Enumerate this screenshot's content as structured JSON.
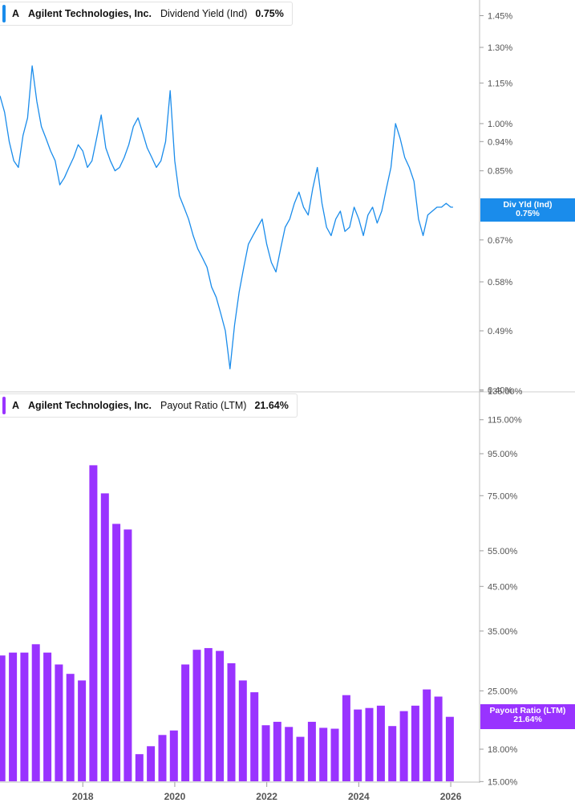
{
  "chart_data": [
    {
      "type": "line",
      "ticker": "A",
      "company": "Agilent Technologies, Inc.",
      "metric": "Dividend Yield (Ind)",
      "current_value": "0.75%",
      "tag_label": "Div Yld (Ind)",
      "color": "#1a8ceb",
      "y_scale": "log",
      "yticks": [
        "1.45%",
        "1.30%",
        "1.15%",
        "1.00%",
        "0.94%",
        "0.85%",
        "0.67%",
        "0.58%",
        "0.49%",
        "0.40%"
      ],
      "ytick_values": [
        1.45,
        1.3,
        1.15,
        1.0,
        0.94,
        0.85,
        0.67,
        0.58,
        0.49,
        0.4
      ],
      "ylim": [
        0.4,
        1.65
      ],
      "xlim": [
        2016.2,
        2026.4
      ],
      "x": [
        2016.2,
        2016.3,
        2016.4,
        2016.5,
        2016.6,
        2016.7,
        2016.8,
        2016.9,
        2017.0,
        2017.1,
        2017.2,
        2017.3,
        2017.4,
        2017.5,
        2017.6,
        2017.7,
        2017.8,
        2017.9,
        2018.0,
        2018.1,
        2018.2,
        2018.3,
        2018.4,
        2018.5,
        2018.6,
        2018.7,
        2018.8,
        2018.9,
        2019.0,
        2019.1,
        2019.2,
        2019.3,
        2019.4,
        2019.5,
        2019.6,
        2019.7,
        2019.8,
        2019.9,
        2020.0,
        2020.1,
        2020.2,
        2020.3,
        2020.4,
        2020.5,
        2020.6,
        2020.7,
        2020.8,
        2020.9,
        2021.0,
        2021.1,
        2021.2,
        2021.3,
        2021.4,
        2021.5,
        2021.6,
        2021.7,
        2021.8,
        2021.9,
        2022.0,
        2022.1,
        2022.2,
        2022.3,
        2022.4,
        2022.5,
        2022.6,
        2022.7,
        2022.8,
        2022.9,
        2023.0,
        2023.1,
        2023.2,
        2023.3,
        2023.4,
        2023.5,
        2023.6,
        2023.7,
        2023.8,
        2023.9,
        2024.0,
        2024.1,
        2024.2,
        2024.3,
        2024.4,
        2024.5,
        2024.6,
        2024.7,
        2024.8,
        2024.9,
        2025.0,
        2025.1,
        2025.2,
        2025.3,
        2025.4,
        2025.5,
        2025.6,
        2025.7,
        2025.8,
        2025.9,
        2026.0,
        2026.05
      ],
      "y": [
        1.1,
        1.04,
        0.94,
        0.88,
        0.86,
        0.96,
        1.02,
        1.22,
        1.08,
        0.99,
        0.95,
        0.91,
        0.88,
        0.81,
        0.83,
        0.86,
        0.89,
        0.93,
        0.91,
        0.86,
        0.88,
        0.95,
        1.03,
        0.92,
        0.88,
        0.85,
        0.86,
        0.89,
        0.93,
        0.99,
        1.02,
        0.97,
        0.92,
        0.89,
        0.86,
        0.88,
        0.94,
        1.12,
        0.88,
        0.78,
        0.75,
        0.72,
        0.68,
        0.65,
        0.63,
        0.61,
        0.57,
        0.55,
        0.52,
        0.49,
        0.43,
        0.5,
        0.56,
        0.61,
        0.66,
        0.68,
        0.7,
        0.72,
        0.66,
        0.62,
        0.6,
        0.65,
        0.7,
        0.72,
        0.76,
        0.79,
        0.75,
        0.73,
        0.8,
        0.86,
        0.76,
        0.7,
        0.68,
        0.72,
        0.74,
        0.69,
        0.7,
        0.75,
        0.72,
        0.68,
        0.73,
        0.75,
        0.71,
        0.74,
        0.8,
        0.86,
        1.0,
        0.95,
        0.89,
        0.86,
        0.82,
        0.72,
        0.68,
        0.73,
        0.74,
        0.75,
        0.75,
        0.76,
        0.75,
        0.75
      ]
    },
    {
      "type": "bar",
      "ticker": "A",
      "company": "Agilent Technologies, Inc.",
      "metric": "Payout Ratio (LTM)",
      "current_value": "21.64%",
      "tag_label": "Payout Ratio (LTM)",
      "color": "#9933ff",
      "y_scale": "log",
      "yticks": [
        "135.00%",
        "115.00%",
        "95.00%",
        "75.00%",
        "55.00%",
        "45.00%",
        "35.00%",
        "25.00%",
        "18.00%",
        "15.00%"
      ],
      "ytick_values": [
        135,
        115,
        95,
        75,
        55,
        45,
        35,
        25,
        18,
        15
      ],
      "ylim": [
        15,
        135
      ],
      "xticks": [
        "2018",
        "2020",
        "2022",
        "2024",
        "2026"
      ],
      "xtick_values": [
        2018.0,
        2020.0,
        2022.0,
        2024.0,
        2026.0
      ],
      "xlim": [
        2016.2,
        2026.4
      ],
      "x": [
        2016.23,
        2016.48,
        2016.73,
        2016.98,
        2017.23,
        2017.48,
        2017.73,
        2017.98,
        2018.23,
        2018.48,
        2018.73,
        2018.98,
        2019.23,
        2019.48,
        2019.73,
        2019.98,
        2020.23,
        2020.48,
        2020.73,
        2020.98,
        2021.23,
        2021.48,
        2021.73,
        2021.98,
        2022.23,
        2022.48,
        2022.73,
        2022.98,
        2023.23,
        2023.48,
        2023.73,
        2023.98,
        2024.23,
        2024.48,
        2024.73,
        2024.98,
        2025.23,
        2025.48,
        2025.73,
        2025.98
      ],
      "values": [
        30.5,
        31.0,
        31.0,
        32.5,
        31.0,
        29.0,
        27.5,
        26.5,
        89.0,
        76.0,
        64.0,
        62.0,
        17.5,
        18.3,
        19.5,
        20.0,
        29.0,
        31.5,
        31.8,
        31.3,
        29.2,
        26.5,
        24.8,
        20.6,
        21.0,
        20.4,
        19.3,
        21.0,
        20.3,
        20.2,
        24.4,
        22.5,
        22.7,
        23.0,
        20.5,
        22.3,
        23.0,
        25.2,
        24.2,
        21.6
      ]
    }
  ]
}
